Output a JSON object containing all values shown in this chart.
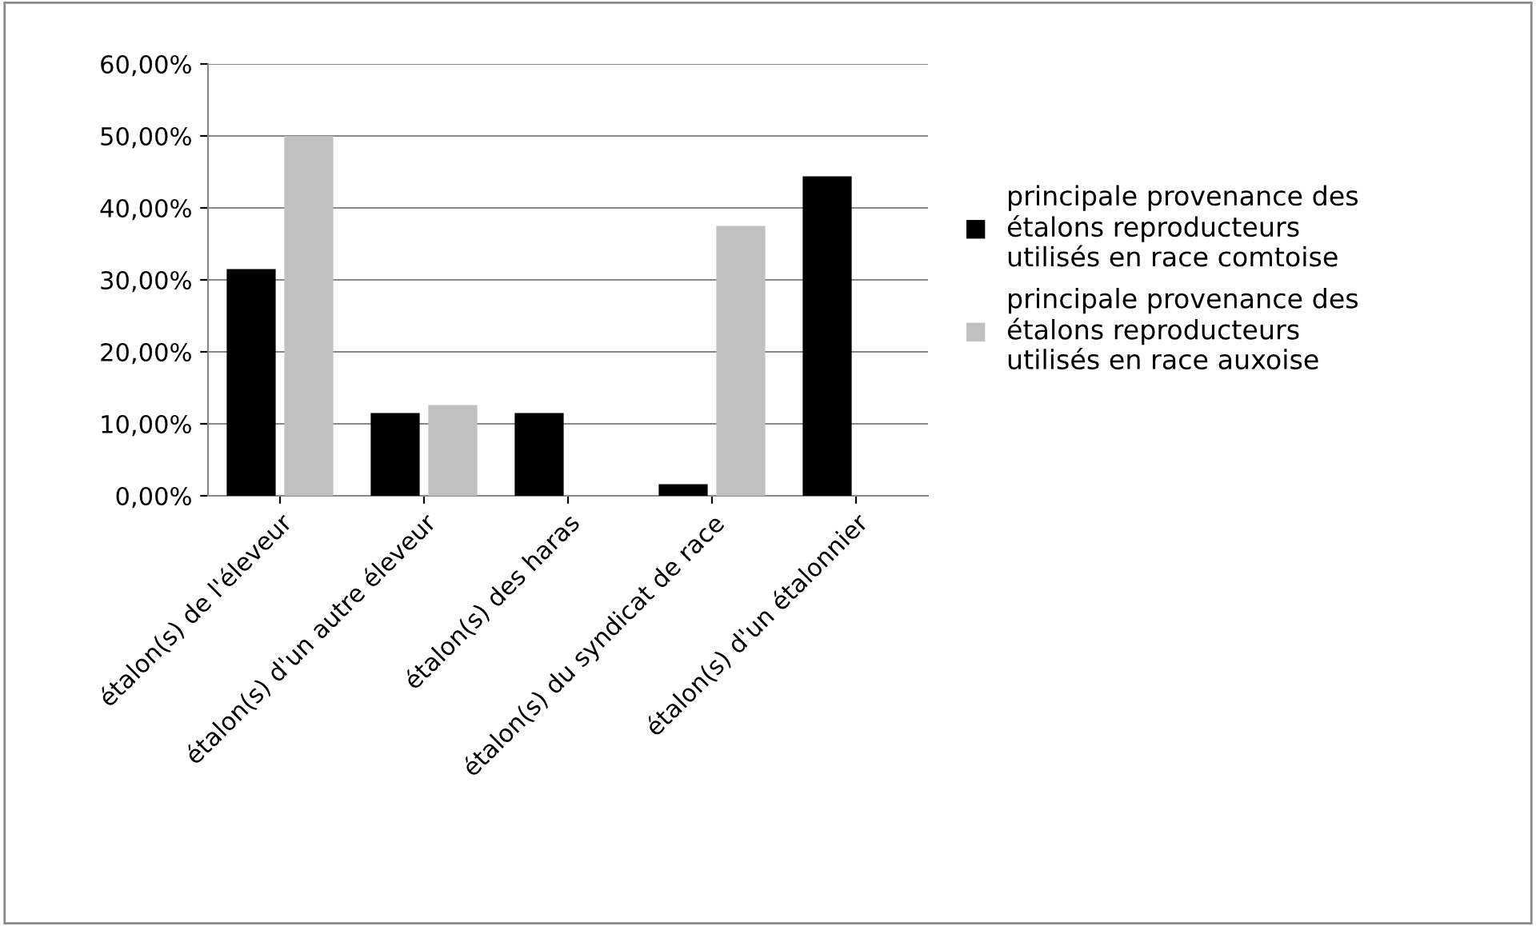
{
  "chart_data": {
    "type": "bar",
    "categories": [
      "étalon(s) de l'éleveur",
      "étalon(s) d'un autre éleveur",
      "étalon(s) des haras",
      "étalon(s) du syndicat de race",
      "étalon(s) d'un étalonnier"
    ],
    "series": [
      {
        "name": "principale provenance des\nétalons reproducteurs\nutilisés en race comtoise",
        "color": "#000000",
        "values": [
          31.5,
          11.5,
          11.5,
          1.6,
          44.4
        ]
      },
      {
        "name": "principale provenance des\nétalons reproducteurs\nutilisés en race auxoise",
        "color": "#c0c0c0",
        "values": [
          50,
          12.6,
          0,
          37.5,
          0
        ]
      }
    ],
    "ylim": [
      0,
      60
    ],
    "yticks": [
      {
        "value": 0,
        "label": "0,00%"
      },
      {
        "value": 10,
        "label": "10,00%"
      },
      {
        "value": 20,
        "label": "20,00%"
      },
      {
        "value": 30,
        "label": "30,00%"
      },
      {
        "value": 40,
        "label": "40,00%"
      },
      {
        "value": 50,
        "label": "50,00%"
      },
      {
        "value": 60,
        "label": "60,00%"
      }
    ],
    "grid": "y",
    "legend": "right"
  }
}
